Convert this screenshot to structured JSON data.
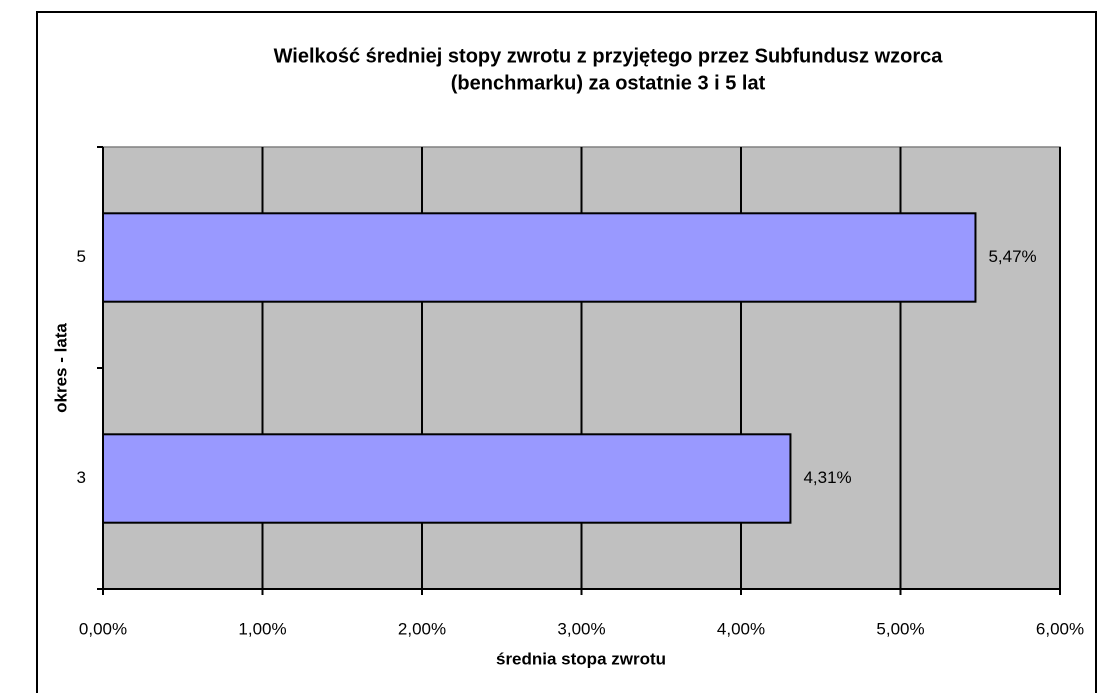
{
  "chart_data": {
    "type": "bar",
    "orientation": "horizontal",
    "title": [
      "Wielkość średniej stopy zwrotu z przyjętego przez Subfundusz wzorca",
      "(benchmarku) za ostatnie 3 i 5 lat"
    ],
    "x_label": "średnia stopa zwrotu",
    "y_label": "okres - lata",
    "categories": [
      "3",
      "5"
    ],
    "values": [
      4.31,
      5.47
    ],
    "value_labels": [
      "4,31%",
      "5,47%"
    ],
    "color": "#9999ff",
    "xlim": [
      0,
      6
    ],
    "xticks": [
      {
        "value": 0,
        "label": "0,00%"
      },
      {
        "value": 1,
        "label": "1,00%"
      },
      {
        "value": 2,
        "label": "2,00%"
      },
      {
        "value": 3,
        "label": "3,00%"
      },
      {
        "value": 4,
        "label": "4,00%"
      },
      {
        "value": 5,
        "label": "5,00%"
      },
      {
        "value": 6,
        "label": "6,00%"
      }
    ],
    "grid": true
  }
}
